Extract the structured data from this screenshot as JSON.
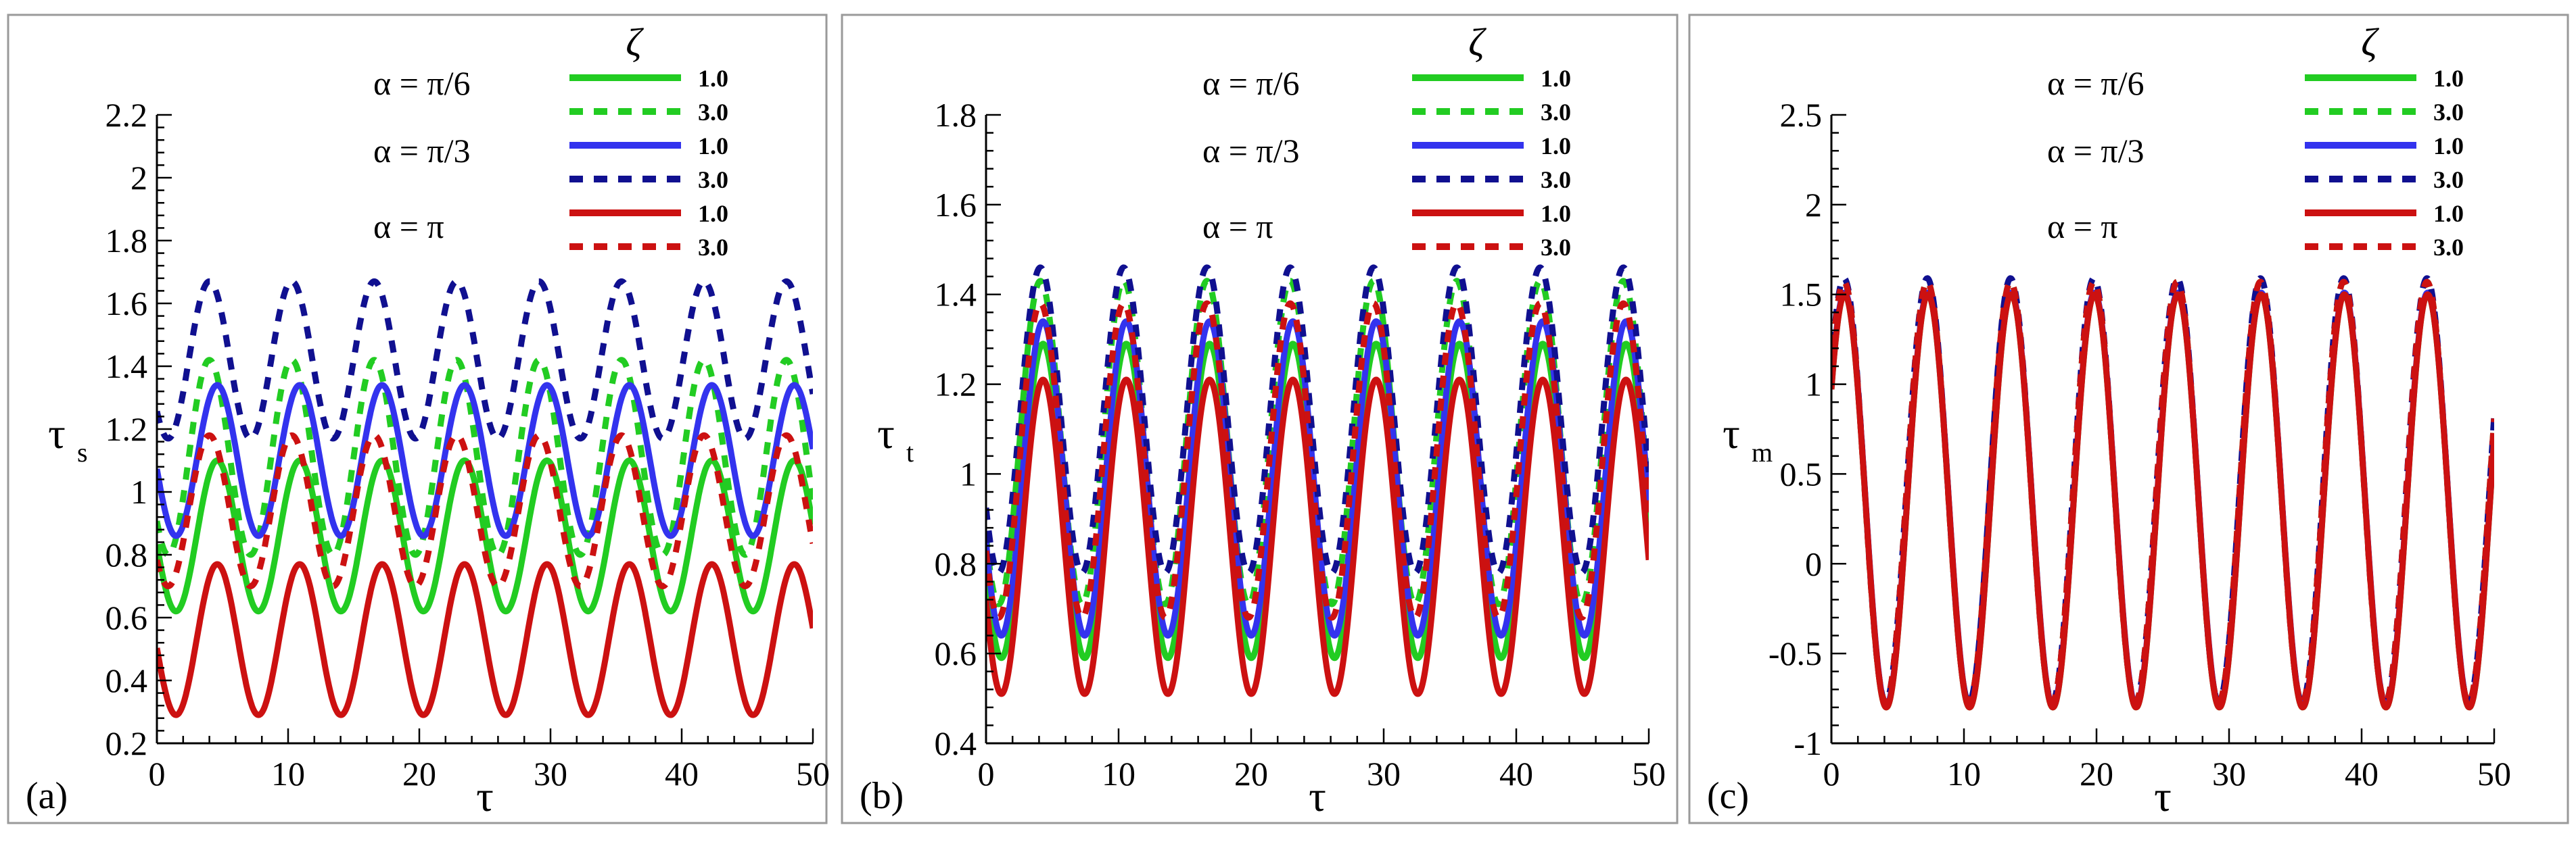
{
  "colors": {
    "green": "#22cc22",
    "blue": "#3333ee",
    "darkblue": "#101090",
    "red": "#cc1111",
    "frame": "#9a9a9a",
    "axis": "#000000"
  },
  "alpha_labels": [
    "α = π/6",
    "α = π/3",
    "α = π"
  ],
  "legend": {
    "title": "ζ",
    "entries": [
      {
        "label": "1.0",
        "color": "#22cc22",
        "dash": false
      },
      {
        "label": "3.0",
        "color": "#22cc22",
        "dash": true
      },
      {
        "label": "1.0",
        "color": "#3333ee",
        "dash": false
      },
      {
        "label": "3.0",
        "color": "#101090",
        "dash": true
      },
      {
        "label": "1.0",
        "color": "#cc1111",
        "dash": false
      },
      {
        "label": "3.0",
        "color": "#cc1111",
        "dash": true
      }
    ]
  },
  "chart_data": [
    {
      "type": "line",
      "panel_label": "(a)",
      "xlabel": "τ",
      "ylabel_main": "τ",
      "ylabel_sub": "s",
      "xlim": [
        0,
        50
      ],
      "ylim": [
        0.2,
        2.2
      ],
      "xticks": [
        0,
        10,
        20,
        30,
        40,
        50
      ],
      "yticks": [
        0.2,
        0.4,
        0.6,
        0.8,
        1,
        1.2,
        1.4,
        1.6,
        1.8,
        2,
        2.2
      ],
      "ytick_labels": [
        "0.2",
        "0.4",
        "0.6",
        "0.8",
        "1",
        "1.2",
        "1.4",
        "1.6",
        "1.8",
        "2",
        "2.2"
      ],
      "series": [
        {
          "name": "α = π/6, ζ = 1.0",
          "color": "#22cc22",
          "dash": false,
          "mean": 0.86,
          "amplitude": 0.24,
          "period": 6.283,
          "peak_at": 4.6
        },
        {
          "name": "α = π/6, ζ = 3.0",
          "color": "#22cc22",
          "dash": true,
          "mean": 1.11,
          "amplitude": 0.31,
          "period": 6.283,
          "peak_at": 4.0
        },
        {
          "name": "α = π/3, ζ = 1.0",
          "color": "#3333ee",
          "dash": false,
          "mean": 1.1,
          "amplitude": 0.24,
          "period": 6.283,
          "peak_at": 4.6
        },
        {
          "name": "α = π/3, ζ = 3.0",
          "color": "#101090",
          "dash": true,
          "mean": 1.42,
          "amplitude": 0.25,
          "period": 6.283,
          "peak_at": 4.0
        },
        {
          "name": "α = π, ζ = 1.0",
          "color": "#cc1111",
          "dash": false,
          "mean": 0.53,
          "amplitude": 0.24,
          "period": 6.283,
          "peak_at": 4.6
        },
        {
          "name": "α = π, ζ = 3.0",
          "color": "#cc1111",
          "dash": true,
          "mean": 0.94,
          "amplitude": 0.24,
          "period": 6.283,
          "peak_at": 4.0
        }
      ]
    },
    {
      "type": "line",
      "panel_label": "(b)",
      "xlabel": "τ",
      "ylabel_main": "τ",
      "ylabel_sub": "t",
      "xlim": [
        0,
        50
      ],
      "ylim": [
        0.4,
        1.8
      ],
      "xticks": [
        0,
        10,
        20,
        30,
        40,
        50
      ],
      "yticks": [
        0.4,
        0.6,
        0.8,
        1,
        1.2,
        1.4,
        1.6,
        1.8
      ],
      "ytick_labels": [
        "0.4",
        "0.6",
        "0.8",
        "1",
        "1.2",
        "1.4",
        "1.6",
        "1.8"
      ],
      "series": [
        {
          "name": "α = π/6, ζ = 1.0",
          "color": "#22cc22",
          "dash": false,
          "mean": 0.94,
          "amplitude": 0.35,
          "period": 6.283,
          "peak_at": 4.3
        },
        {
          "name": "α = π/6, ζ = 3.0",
          "color": "#22cc22",
          "dash": true,
          "mean": 1.07,
          "amplitude": 0.36,
          "period": 6.283,
          "peak_at": 4.1
        },
        {
          "name": "α = π/3, ζ = 1.0",
          "color": "#3333ee",
          "dash": false,
          "mean": 0.99,
          "amplitude": 0.35,
          "period": 6.283,
          "peak_at": 4.3
        },
        {
          "name": "α = π/3, ζ = 3.0",
          "color": "#101090",
          "dash": true,
          "mean": 1.12,
          "amplitude": 0.34,
          "period": 6.283,
          "peak_at": 4.1
        },
        {
          "name": "α = π, ζ = 1.0",
          "color": "#cc1111",
          "dash": false,
          "mean": 0.86,
          "amplitude": 0.35,
          "period": 6.283,
          "peak_at": 4.3
        },
        {
          "name": "α = π, ζ = 3.0",
          "color": "#cc1111",
          "dash": true,
          "mean": 1.03,
          "amplitude": 0.35,
          "period": 6.283,
          "peak_at": 4.1
        }
      ]
    },
    {
      "type": "line",
      "panel_label": "(c)",
      "xlabel": "τ",
      "ylabel_main": "τ",
      "ylabel_sub": "m",
      "xlim": [
        0,
        50
      ],
      "ylim": [
        -1,
        2.5
      ],
      "xticks": [
        0,
        10,
        20,
        30,
        40,
        50
      ],
      "yticks": [
        -1,
        -0.5,
        0,
        0.5,
        1,
        1.5,
        2,
        2.5
      ],
      "ytick_labels": [
        "-1",
        "-0.5",
        "0",
        "0.5",
        "1",
        "1.5",
        "2",
        "2.5"
      ],
      "series": [
        {
          "name": "α = π/6, ζ = 1.0",
          "color": "#22cc22",
          "dash": false,
          "mean": 0.35,
          "amplitude": 1.15,
          "period": 6.283,
          "peak_at": 1.0
        },
        {
          "name": "α = π/6, ζ = 3.0",
          "color": "#22cc22",
          "dash": true,
          "mean": 0.4,
          "amplitude": 1.17,
          "period": 6.283,
          "peak_at": 0.95
        },
        {
          "name": "α = π/3, ζ = 1.0",
          "color": "#3333ee",
          "dash": false,
          "mean": 0.36,
          "amplitude": 1.15,
          "period": 6.283,
          "peak_at": 1.0
        },
        {
          "name": "α = π/3, ζ = 3.0",
          "color": "#101090",
          "dash": true,
          "mean": 0.41,
          "amplitude": 1.18,
          "period": 6.283,
          "peak_at": 0.95
        },
        {
          "name": "α = π, ζ = 1.0",
          "color": "#cc1111",
          "dash": false,
          "mean": 0.35,
          "amplitude": 1.15,
          "period": 6.283,
          "peak_at": 1.0
        },
        {
          "name": "α = π, ζ = 3.0",
          "color": "#cc1111",
          "dash": true,
          "mean": 0.4,
          "amplitude": 1.17,
          "period": 6.283,
          "peak_at": 0.95
        }
      ]
    }
  ]
}
